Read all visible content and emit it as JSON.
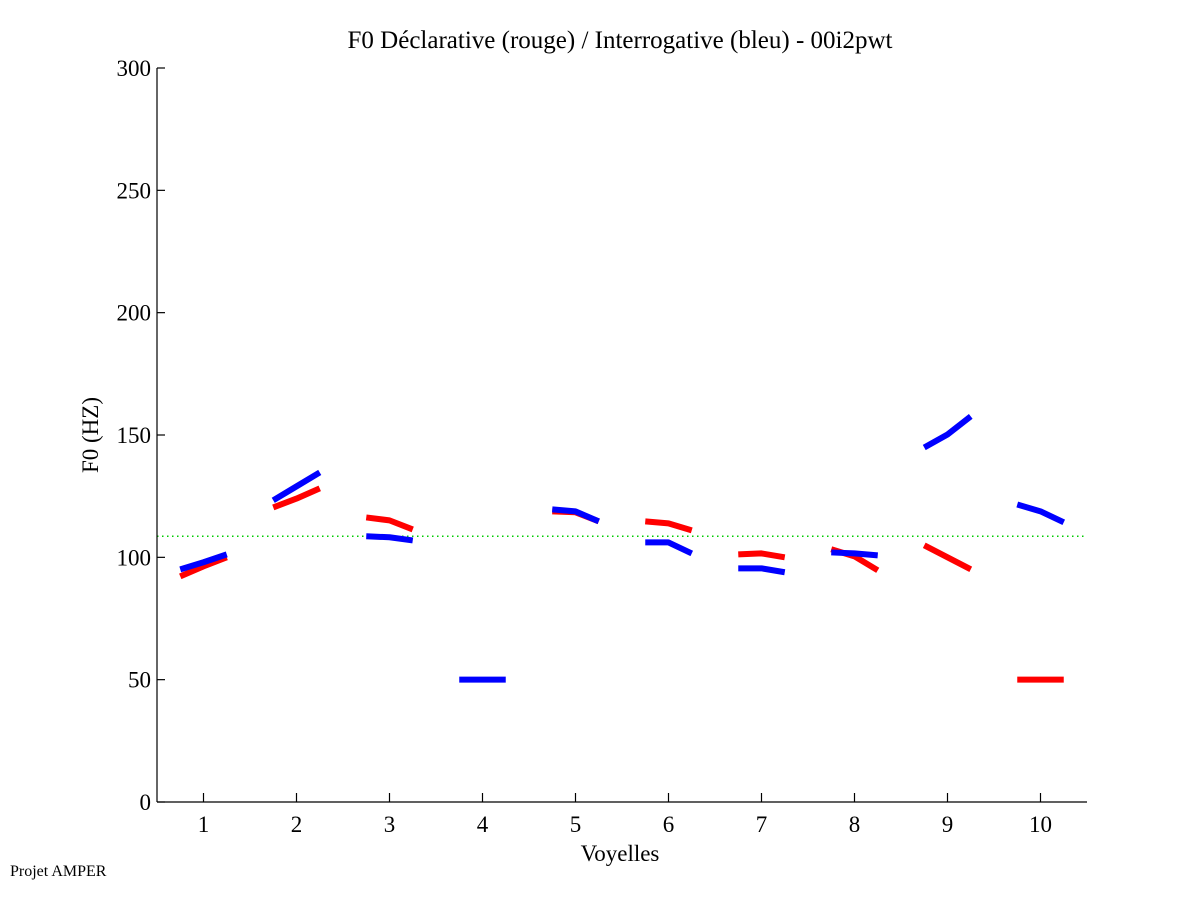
{
  "chart_data": {
    "type": "line",
    "title": "F0 Déclarative (rouge) / Interrogative (bleu) - 00i2pwt",
    "xlabel": "Voyelles",
    "ylabel": "F0 (HZ)",
    "xlim": [
      0.5,
      10.5
    ],
    "ylim": [
      0,
      300
    ],
    "xticks": [
      1,
      2,
      3,
      4,
      5,
      6,
      7,
      8,
      9,
      10
    ],
    "xtick_labels": [
      "1",
      "2",
      "3",
      "4",
      "5",
      "6",
      "7",
      "8",
      "9",
      "10"
    ],
    "yticks": [
      0,
      50,
      100,
      150,
      200,
      250,
      300
    ],
    "ytick_labels": [
      "0",
      "50",
      "100",
      "150",
      "200",
      "250",
      "300"
    ],
    "grid": false,
    "reference_line": {
      "y": 108.6,
      "color": "#00cc00",
      "style": "dotted"
    },
    "segment_offsets": [
      -0.25,
      0,
      0.25
    ],
    "series": [
      {
        "name": "Déclarative",
        "color": "#ff0000",
        "segments": [
          {
            "vowel": 1,
            "values": [
              92.2,
              96.3,
              100.0
            ]
          },
          {
            "vowel": 2,
            "values": [
              120.4,
              124.0,
              128.2
            ]
          },
          {
            "vowel": 3,
            "values": [
              116.3,
              115.1,
              111.4
            ]
          },
          {
            "vowel": 5,
            "values": [
              118.8,
              118.4,
              114.7
            ]
          },
          {
            "vowel": 6,
            "values": [
              114.7,
              113.9,
              111.0
            ]
          },
          {
            "vowel": 7,
            "values": [
              101.2,
              101.6,
              100.0
            ]
          },
          {
            "vowel": 8,
            "values": [
              103.3,
              100.4,
              94.7
            ]
          },
          {
            "vowel": 9,
            "values": [
              104.9,
              100.0,
              95.1
            ]
          },
          {
            "vowel": 10,
            "values": [
              50.0,
              50.0,
              50.0
            ]
          }
        ]
      },
      {
        "name": "Interrogative",
        "color": "#0000ff",
        "segments": [
          {
            "vowel": 1,
            "values": [
              95.1,
              98.0,
              101.2
            ]
          },
          {
            "vowel": 2,
            "values": [
              123.3,
              129.0,
              134.7
            ]
          },
          {
            "vowel": 3,
            "values": [
              108.6,
              108.2,
              106.9
            ]
          },
          {
            "vowel": 4,
            "values": [
              50.0,
              50.0,
              50.0
            ]
          },
          {
            "vowel": 5,
            "values": [
              119.6,
              118.8,
              114.7
            ]
          },
          {
            "vowel": 6,
            "values": [
              106.1,
              106.1,
              101.6
            ]
          },
          {
            "vowel": 7,
            "values": [
              95.5,
              95.5,
              93.9
            ]
          },
          {
            "vowel": 8,
            "values": [
              102.0,
              101.6,
              100.8
            ]
          },
          {
            "vowel": 9,
            "values": [
              144.9,
              150.2,
              157.6
            ]
          },
          {
            "vowel": 10,
            "values": [
              121.6,
              118.8,
              114.3
            ]
          }
        ]
      }
    ]
  },
  "footer": {
    "note": "Projet AMPER"
  }
}
